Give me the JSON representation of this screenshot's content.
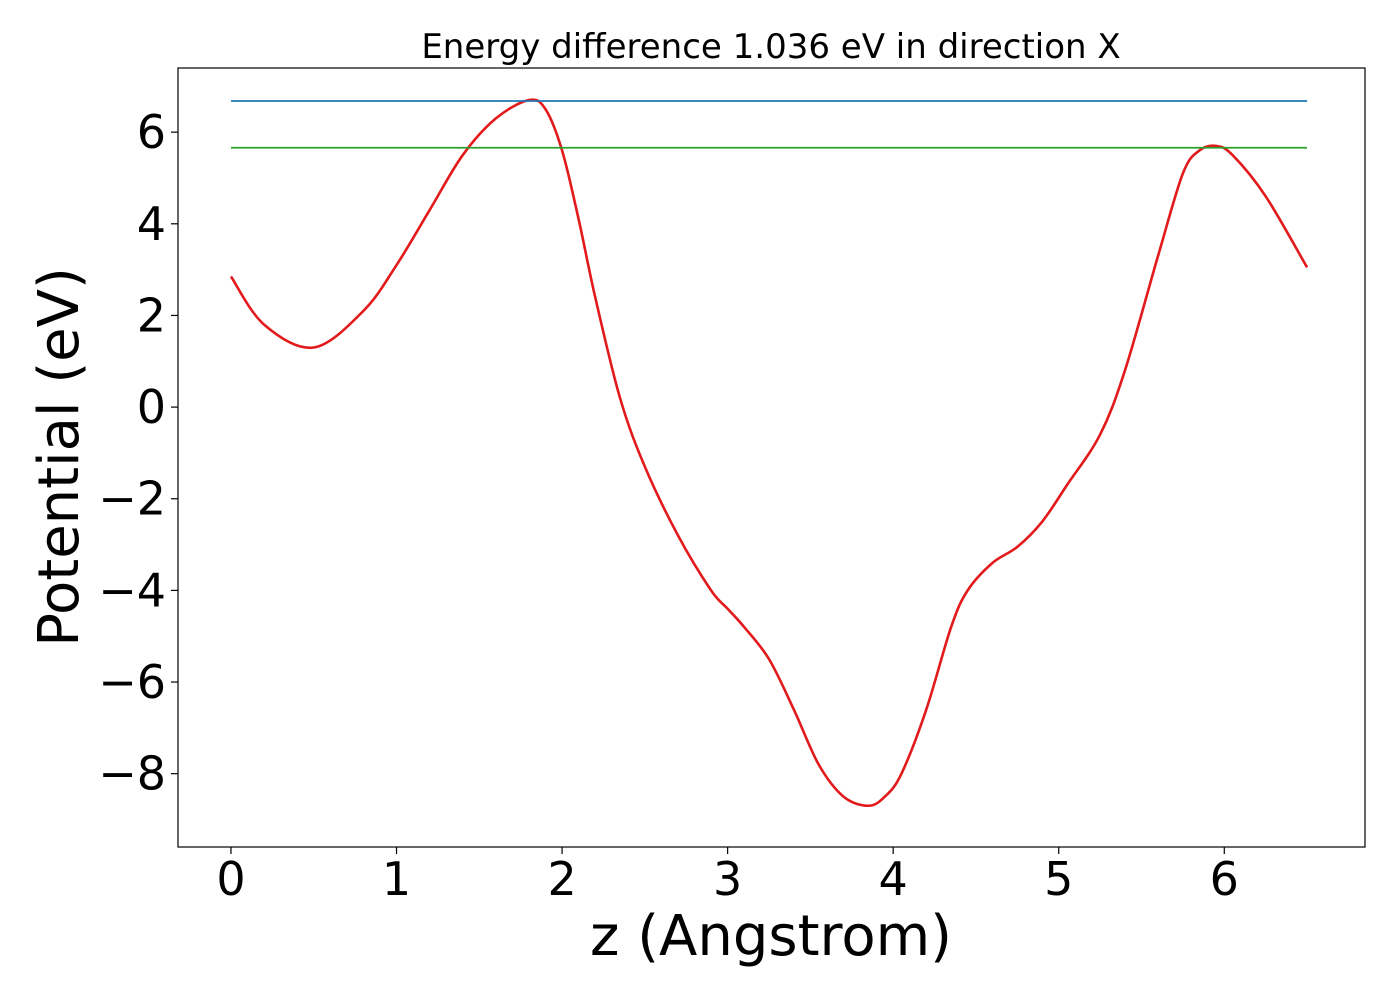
{
  "chart_data": {
    "type": "line",
    "title": "Energy difference 1.036 eV in direction X",
    "xlabel": "z (Angstrom)",
    "ylabel": "Potential (eV)",
    "xlim": [
      -0.32,
      6.85
    ],
    "ylim": [
      -9.6,
      7.4
    ],
    "x_ticks": [
      0,
      1,
      2,
      3,
      4,
      5,
      6
    ],
    "x_tick_labels": [
      "0",
      "1",
      "2",
      "3",
      "4",
      "5",
      "6"
    ],
    "y_ticks": [
      6,
      4,
      2,
      0,
      -2,
      -4,
      -6,
      -8
    ],
    "y_tick_labels": [
      "6",
      "4",
      "2",
      "0",
      "−2",
      "−4",
      "−6",
      "−8"
    ],
    "grid": false,
    "series": [
      {
        "kind": "curve",
        "color": "#e31a1c",
        "x": [
          0.0,
          0.2,
          0.5,
          0.8,
          1.0,
          1.2,
          1.4,
          1.6,
          1.8,
          1.9,
          2.0,
          2.1,
          2.2,
          2.35,
          2.5,
          2.7,
          2.9,
          3.0,
          3.1,
          3.25,
          3.4,
          3.55,
          3.7,
          3.85,
          3.95,
          4.05,
          4.2,
          4.35,
          4.45,
          4.6,
          4.75,
          4.9,
          5.05,
          5.25,
          5.4,
          5.6,
          5.75,
          5.85,
          5.95,
          6.05,
          6.25,
          6.5
        ],
        "y": [
          2.85,
          1.8,
          1.3,
          2.1,
          3.1,
          4.3,
          5.5,
          6.3,
          6.7,
          6.5,
          5.6,
          4.1,
          2.4,
          0.2,
          -1.3,
          -2.8,
          -4.0,
          -4.4,
          -4.8,
          -5.5,
          -6.6,
          -7.8,
          -8.5,
          -8.7,
          -8.5,
          -8.0,
          -6.6,
          -4.8,
          -4.0,
          -3.4,
          -3.05,
          -2.5,
          -1.7,
          -0.6,
          0.8,
          3.3,
          5.1,
          5.6,
          5.7,
          5.5,
          4.6,
          3.05
        ]
      },
      {
        "kind": "hline",
        "color": "#1f77b4",
        "y": 6.68,
        "x": [
          0.0,
          6.5
        ]
      },
      {
        "kind": "hline",
        "color": "#2ca02c",
        "y": 5.66,
        "x": [
          0.0,
          6.5
        ]
      }
    ]
  }
}
